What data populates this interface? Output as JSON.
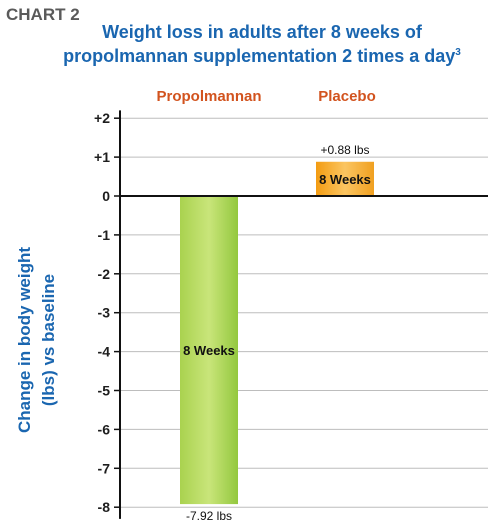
{
  "chart_label": "CHART 2",
  "chart_data": {
    "type": "bar",
    "title_line1": "Weight loss in adults after 8 weeks of",
    "title_line2": "propolmannan supplementation 2 times a day",
    "title_superscript": "3",
    "ylabel_line1": "Change in body weight",
    "ylabel_line2": "(lbs) vs baseline",
    "ylim": [
      -8.3,
      2.2
    ],
    "yticks": [
      2,
      1,
      0,
      -1,
      -2,
      -3,
      -4,
      -5,
      -6,
      -7,
      -8
    ],
    "ytick_labels": [
      "+2",
      "+1",
      "0",
      "-1",
      "-2",
      "-3",
      "-4",
      "-5",
      "-6",
      "-7",
      "-8"
    ],
    "categories": [
      "Propolmannan",
      "Placebo"
    ],
    "values": [
      -7.92,
      0.88
    ],
    "value_labels": [
      "-7.92 lbs",
      "+0.88 lbs"
    ],
    "bar_labels": [
      "8 Weeks",
      "8 Weeks"
    ],
    "grid": true,
    "legend": "none"
  },
  "colors": {
    "title": "#1a66b0",
    "category_label": "#d2531e",
    "bar_propolmannan": "#93c83e",
    "bar_placebo": "#f5a623",
    "gridline": "#bdbdbd",
    "axis": "#111111"
  }
}
